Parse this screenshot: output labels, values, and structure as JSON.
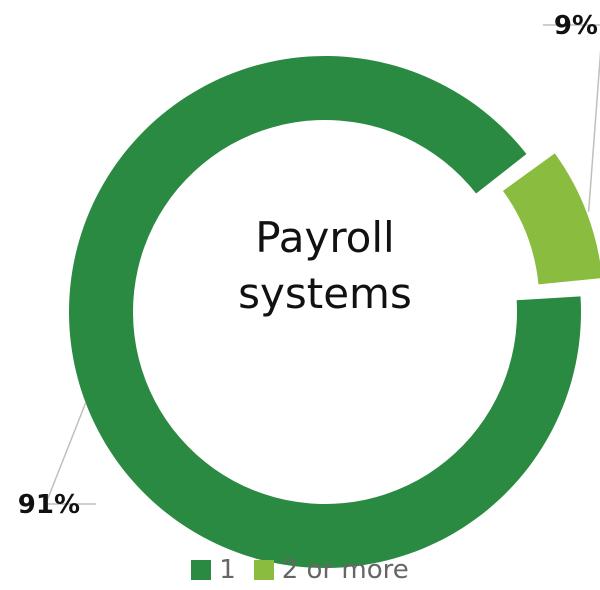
{
  "chart_data": {
    "type": "pie",
    "variant": "donut",
    "center_label_lines": [
      "Payroll",
      "systems"
    ],
    "slices": [
      {
        "name": "1",
        "value": 91,
        "label": "91%",
        "color": "#2b8a42",
        "exploded": false
      },
      {
        "name": "2 or more",
        "value": 9,
        "label": "9%",
        "color": "#8abd3f",
        "exploded": true
      }
    ],
    "legend_placement": "bottom-center"
  }
}
